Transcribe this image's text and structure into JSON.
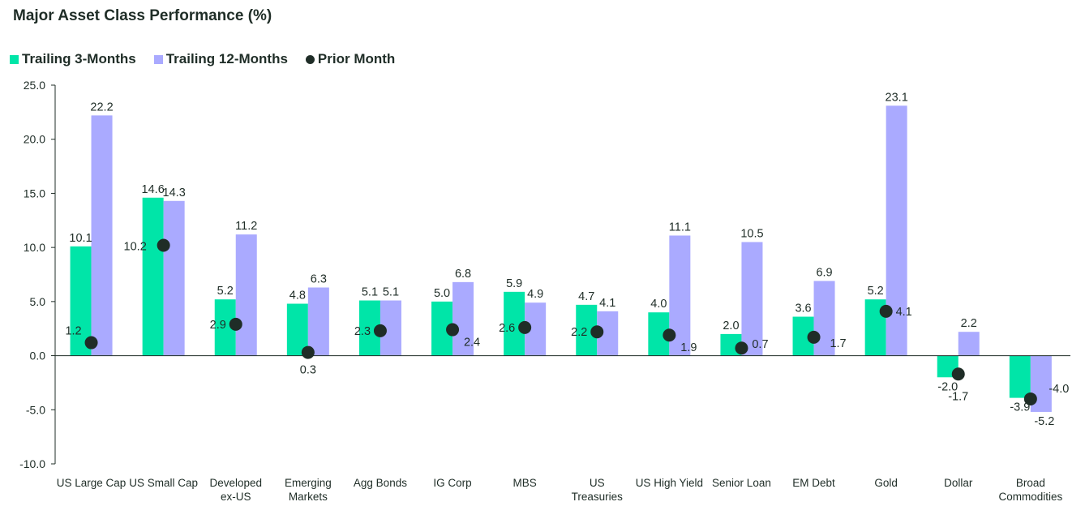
{
  "chart_data": {
    "type": "bar",
    "title": "Major Asset Class Performance (%)",
    "categories": [
      [
        "US Large Cap"
      ],
      [
        "US Small Cap"
      ],
      [
        "Developed",
        "ex-US"
      ],
      [
        "Emerging",
        "Markets"
      ],
      [
        "Agg Bonds"
      ],
      [
        "IG Corp"
      ],
      [
        "MBS"
      ],
      [
        "US",
        "Treasuries"
      ],
      [
        "US High Yield"
      ],
      [
        "Senior Loan"
      ],
      [
        "EM Debt"
      ],
      [
        "Gold"
      ],
      [
        "Dollar"
      ],
      [
        "Broad",
        "Commodities"
      ]
    ],
    "series": [
      {
        "name": "Trailing 3-Months",
        "kind": "bar",
        "color": "#00e5a8",
        "values": [
          10.1,
          14.6,
          5.2,
          4.8,
          5.1,
          5.0,
          5.9,
          4.7,
          4.0,
          2.0,
          3.6,
          5.2,
          -2.0,
          -3.9
        ]
      },
      {
        "name": "Trailing 12-Months",
        "kind": "bar",
        "color": "#aaaaff",
        "values": [
          22.2,
          14.3,
          11.2,
          6.3,
          5.1,
          6.8,
          4.9,
          4.1,
          11.1,
          10.5,
          6.9,
          23.1,
          2.2,
          -5.2
        ]
      },
      {
        "name": "Prior Month",
        "kind": "marker",
        "color": "#1f2d27",
        "values": [
          1.2,
          10.2,
          2.9,
          0.3,
          2.3,
          2.4,
          2.6,
          2.2,
          1.9,
          0.7,
          1.7,
          4.1,
          -1.7,
          -4.0
        ]
      }
    ],
    "value_labels": {
      "Trailing 3-Months": [
        "10.1",
        "14.6",
        "5.2",
        "4.8",
        "5.1",
        "5.0",
        "5.9",
        "4.7",
        "4.0",
        "2.0",
        "3.6",
        "5.2",
        "-2.0",
        "-3.9"
      ],
      "Trailing 12-Months": [
        "22.2",
        "14.3",
        "11.2",
        "6.3",
        "5.1",
        "6.8",
        "4.9",
        "4.1",
        "11.1",
        "10.5",
        "6.9",
        "23.1",
        "2.2",
        "-5.2"
      ],
      "Prior Month": [
        "1.2",
        "10.2",
        "2.9",
        "0.3",
        "2.3",
        "2.4",
        "2.6",
        "2.2",
        "1.9",
        "0.7",
        "1.7",
        "4.1",
        "-1.7",
        "-4.0"
      ]
    },
    "yticks": [
      "25.0",
      "20.0",
      "15.0",
      "10.0",
      "5.0",
      "0.0",
      "-5.0",
      "-10.0"
    ],
    "ylim": [
      -10,
      25
    ],
    "legend_position": "top-left",
    "grid": false
  }
}
